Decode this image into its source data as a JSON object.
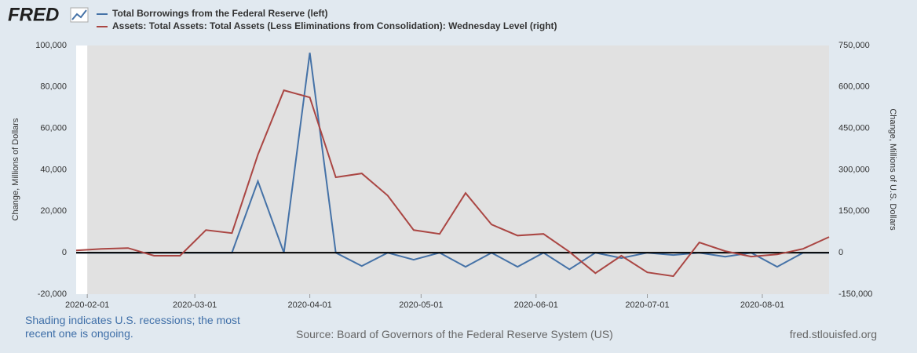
{
  "logo": "FRED",
  "chart_data": {
    "type": "line",
    "x": [
      "2020-01-29",
      "2020-02-05",
      "2020-02-12",
      "2020-02-19",
      "2020-02-26",
      "2020-03-04",
      "2020-03-11",
      "2020-03-18",
      "2020-03-25",
      "2020-04-01",
      "2020-04-08",
      "2020-04-15",
      "2020-04-22",
      "2020-04-29",
      "2020-05-06",
      "2020-05-13",
      "2020-05-20",
      "2020-05-27",
      "2020-06-03",
      "2020-06-10",
      "2020-06-17",
      "2020-06-24",
      "2020-07-01",
      "2020-07-08",
      "2020-07-15",
      "2020-07-22",
      "2020-07-29",
      "2020-08-05",
      "2020-08-12",
      "2020-08-19"
    ],
    "xlim": [
      "2020-01-29",
      "2020-08-19"
    ],
    "xticks": [
      "2020-02-01",
      "2020-03-01",
      "2020-04-01",
      "2020-05-01",
      "2020-06-01",
      "2020-07-01",
      "2020-08-01"
    ],
    "series": [
      {
        "name": "Total Borrowings from the Federal Reserve (left)",
        "color": "#4572a7",
        "values": [
          0,
          0,
          0,
          0,
          0,
          0,
          0,
          34500,
          0,
          96500,
          0,
          -6400,
          0,
          -3400,
          0,
          -6800,
          0,
          -6800,
          0,
          -8000,
          0,
          -2600,
          0,
          -1100,
          0,
          -1900,
          0,
          -6800,
          0,
          0
        ]
      },
      {
        "name": "Assets: Total Assets: Total Assets (Less Eliminations from Consolidation): Wednesday Level (right)",
        "color": "#aa4643",
        "axis": "y2",
        "values": [
          8500,
          14000,
          17000,
          -11000,
          -11000,
          82000,
          71000,
          355000,
          588000,
          562000,
          273000,
          287000,
          207000,
          82000,
          68000,
          216000,
          102000,
          62000,
          68000,
          3000,
          -74000,
          -11000,
          -71000,
          -85000,
          37000,
          6000,
          -14000,
          -6000,
          14000,
          57000
        ]
      }
    ],
    "ylabel": "Change, Millions of Dollars",
    "y2label": "Change, Millions of U.S. Dollars",
    "ylim": [
      -20000,
      100000
    ],
    "yticks": [
      {
        "value": -20000,
        "label": "-20,000"
      },
      0,
      {
        "value": 20000,
        "label": "20,000"
      },
      {
        "value": 40000,
        "label": "40,000"
      },
      {
        "value": 60000,
        "label": "60,000"
      },
      {
        "value": 80000,
        "label": "80,000"
      },
      {
        "value": 100000,
        "label": "100,000"
      }
    ],
    "y2lim": [
      -150000,
      750000
    ],
    "y2ticks": [
      {
        "value": -150000,
        "label": "-150,000"
      },
      0,
      {
        "value": 150000,
        "label": "150,000"
      },
      {
        "value": 300000,
        "label": "300,000"
      },
      {
        "value": 450000,
        "label": "450,000"
      },
      {
        "value": 600000,
        "label": "600,000"
      },
      {
        "value": 750000,
        "label": "750,000"
      }
    ],
    "recession_start": "2020-02-01",
    "grid": false
  },
  "footer": {
    "note": "Shading indicates U.S. recessions; the most recent one is ongoing.",
    "source": "Source: Board of Governors of the Federal Reserve System (US)",
    "site": "fred.stlouisfed.org"
  }
}
